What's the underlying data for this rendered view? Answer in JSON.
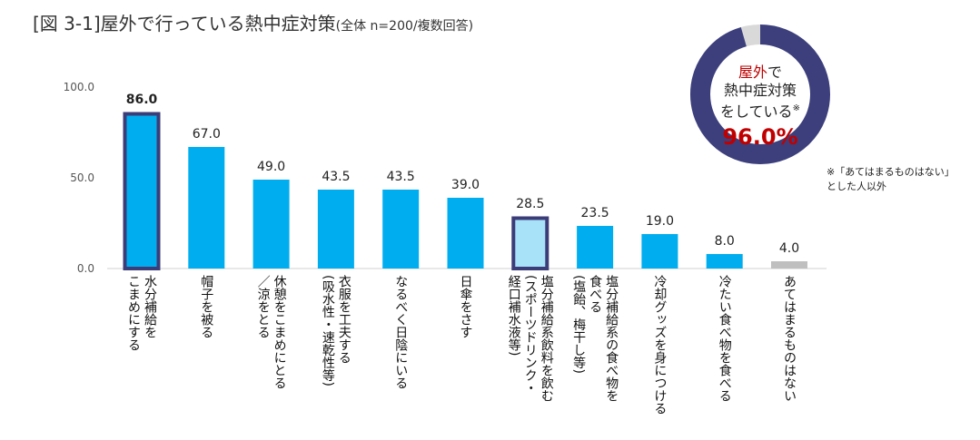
{
  "title": {
    "main": "[図 3-1]屋外で行っている熱中症対策",
    "sub": "(全体 n=200/複数回答)"
  },
  "chart_data": {
    "type": "bar",
    "title": "屋外で行っている熱中症対策",
    "ylim": [
      0,
      100
    ],
    "yticks": [
      "100.0",
      "50.0",
      "0.0"
    ],
    "categories": [
      "水分補給を\nこまめにする",
      "帽子を被る",
      "休憩をこまめにとる\n／涼をとる",
      "衣服を工夫する\n(吸水性・速乾性等)",
      "なるべく日陰にいる",
      "日傘をさす",
      "塩分補給系飲料を飲む\n(スポーツドリンク・\n経口補水液等)",
      "塩分補給系の食べ物を\n食べる\n(塩飴、梅干し等)",
      "冷却グッズを身につける",
      "冷たい食べ物を食べる",
      "あてはまるものはない"
    ],
    "values": [
      86.0,
      67.0,
      49.0,
      43.5,
      43.5,
      39.0,
      28.5,
      23.5,
      19.0,
      8.0,
      4.0
    ],
    "value_labels": [
      "86.0",
      "67.0",
      "49.0",
      "43.5",
      "43.5",
      "39.0",
      "28.5",
      "23.5",
      "19.0",
      "8.0",
      "4.0"
    ],
    "highlighted": [
      0,
      6
    ],
    "colors": {
      "bar": "#00aeef",
      "bar_light": "#a7e2f8",
      "highlight_border": "#3c3c78",
      "none": "#bfbfbf"
    }
  },
  "donut": {
    "line1_accent": "屋外",
    "line1_rest": "で",
    "line2": "熱中症対策",
    "line3": "をしている",
    "mark": "※",
    "percent_label": "96.0%",
    "value": 96.0,
    "colors": {
      "main": "#3c3f7c",
      "rest": "#d9d9d9",
      "accent": "#c00000"
    }
  },
  "note": {
    "line1": "※「あてはまるものはない」",
    "line2": "とした人以外"
  }
}
